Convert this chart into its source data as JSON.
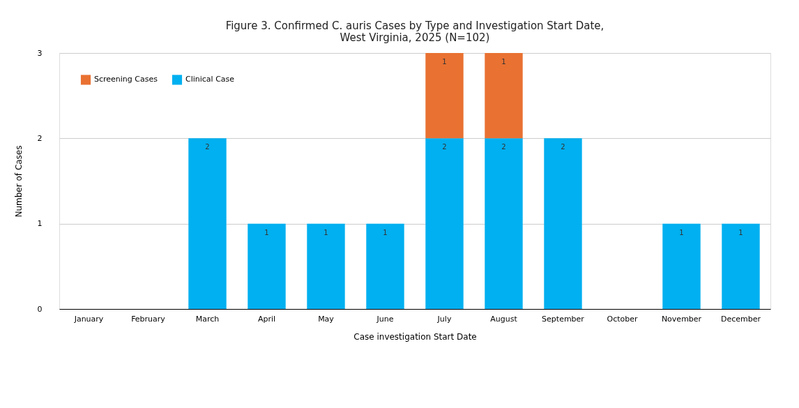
{
  "chart_data": {
    "type": "bar",
    "stacked": true,
    "title": "Figure 3. Confirmed C. auris Cases by Type and Investigation Start Date,\nWest Virginia, 2025 (N=102)",
    "xlabel": "Case investigation Start Date",
    "ylabel": "Number of Cases",
    "categories": [
      "January",
      "February",
      "March",
      "April",
      "May",
      "June",
      "July",
      "August",
      "September",
      "October",
      "November",
      "December"
    ],
    "series": [
      {
        "name": "Clinical Case",
        "color": "#00b0f0",
        "values": [
          0,
          0,
          2,
          1,
          1,
          1,
          2,
          2,
          2,
          0,
          1,
          1
        ],
        "value_labels": [
          null,
          null,
          "2",
          "1",
          "1",
          "1",
          "2",
          "2",
          "2",
          null,
          "1",
          "1"
        ]
      },
      {
        "name": "Screening Cases",
        "color": "#e97132",
        "values": [
          0,
          0,
          0,
          0,
          0,
          0,
          1,
          1,
          0,
          0,
          0,
          0
        ],
        "value_labels": [
          null,
          null,
          null,
          null,
          null,
          null,
          "1",
          "1",
          null,
          null,
          null,
          null
        ]
      }
    ],
    "ylim": [
      0,
      3
    ],
    "yticks": [
      0,
      1,
      2,
      3
    ],
    "grid": "y",
    "legend": "top left"
  }
}
